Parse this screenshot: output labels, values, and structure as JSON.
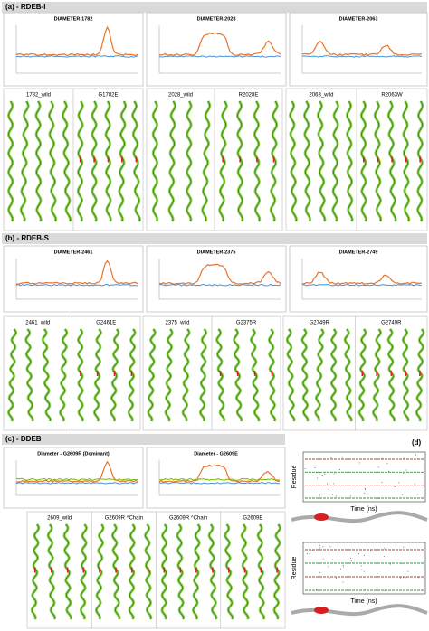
{
  "sections": [
    {
      "label": "(a) - RDEB-I",
      "plots": [
        {
          "title": "DIAMETER-1782"
        },
        {
          "title": "DIAMETER-2028"
        },
        {
          "title": "DIAMETER-2063"
        }
      ],
      "panels": [
        {
          "labels": [
            "1782_wild",
            "G1782E"
          ]
        },
        {
          "labels": [
            "2028_wild",
            "R2028E"
          ]
        },
        {
          "labels": [
            "2063_wild",
            "R2063W"
          ]
        }
      ]
    },
    {
      "label": "(b) - RDEB-S",
      "plots": [
        {
          "title": "DIAMETER-2461"
        },
        {
          "title": "DIAMETER-2375"
        },
        {
          "title": "DIAMETER-2749"
        }
      ],
      "panels": [
        {
          "labels": [
            "2461_wild",
            "G2461E"
          ]
        },
        {
          "labels": [
            "2375_wild",
            "G2375R"
          ]
        },
        {
          "labels": [
            "G2749R",
            "G2749R"
          ]
        }
      ]
    },
    {
      "label": "(c) - DDEB",
      "plots": [
        {
          "title": "Diameter - G2609R (Dominant)"
        },
        {
          "title": "Diameter - G2609E"
        }
      ],
      "panels": [
        {
          "labels": [
            "2609_wild",
            "G2609R ^Chain",
            "G2609R ^Chain",
            "G2609E"
          ]
        }
      ]
    }
  ],
  "panel_d": {
    "label": "(d)",
    "y_label": "Residue",
    "x_label": "Time (ns)"
  }
}
